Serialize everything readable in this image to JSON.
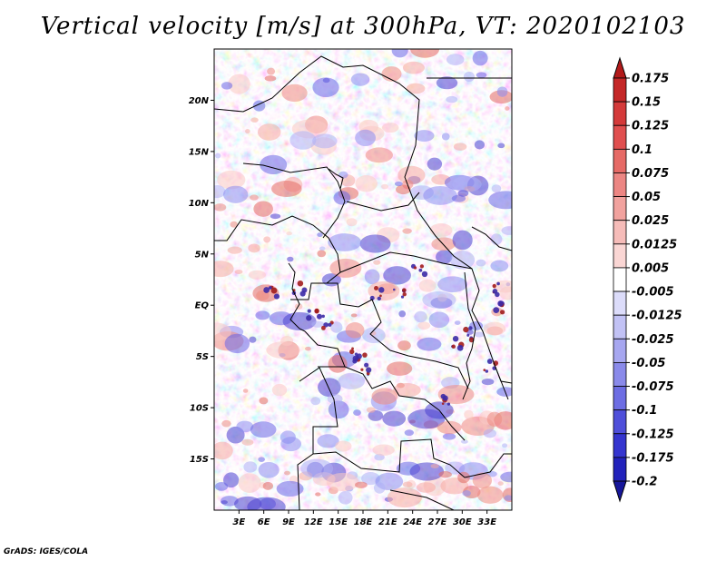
{
  "title": "Vertical velocity [m/s] at 300hPa, VT: 2020102103",
  "credit": "GrADS: IGES/COLA",
  "map": {
    "lon_range": [
      0,
      36
    ],
    "lat_range": [
      -20,
      25
    ],
    "field_colors": [
      "#2e1fa3",
      "#4a3fd0",
      "#6a66e6",
      "#8c8cf0",
      "#aeb0f6",
      "#cdd0fb",
      "#e6e8fd",
      "#ffffff",
      "#fde4e1",
      "#fbc9c4",
      "#f5aaa3",
      "#ee8a82",
      "#e46a62",
      "#d44a44",
      "#bf2f2f",
      "#a11c1c"
    ],
    "x_ticks": [
      "3E",
      "6E",
      "9E",
      "12E",
      "15E",
      "18E",
      "21E",
      "24E",
      "27E",
      "30E",
      "33E"
    ],
    "y_ticks": [
      "20N",
      "15N",
      "10N",
      "5N",
      "EQ",
      "5S",
      "10S",
      "15S"
    ]
  },
  "colorbar": {
    "labels": [
      "0.175",
      "0.15",
      "0.125",
      "0.1",
      "0.075",
      "0.05",
      "0.025",
      "0.0125",
      "0.005",
      "-0.005",
      "-0.0125",
      "-0.025",
      "-0.05",
      "-0.075",
      "-0.1",
      "-0.125",
      "-0.175",
      "-0.2"
    ],
    "colors": [
      "#b21a1a",
      "#c42727",
      "#d43a3a",
      "#e04f4f",
      "#e66a66",
      "#ec8683",
      "#f1a29e",
      "#f6bcb9",
      "#fad6d4",
      "#ffffff",
      "#dcdcfa",
      "#c2c2f5",
      "#a7a7f0",
      "#8a8aea",
      "#6d6de3",
      "#4f4fda",
      "#3535cf",
      "#2222bb",
      "#16169a"
    ]
  }
}
